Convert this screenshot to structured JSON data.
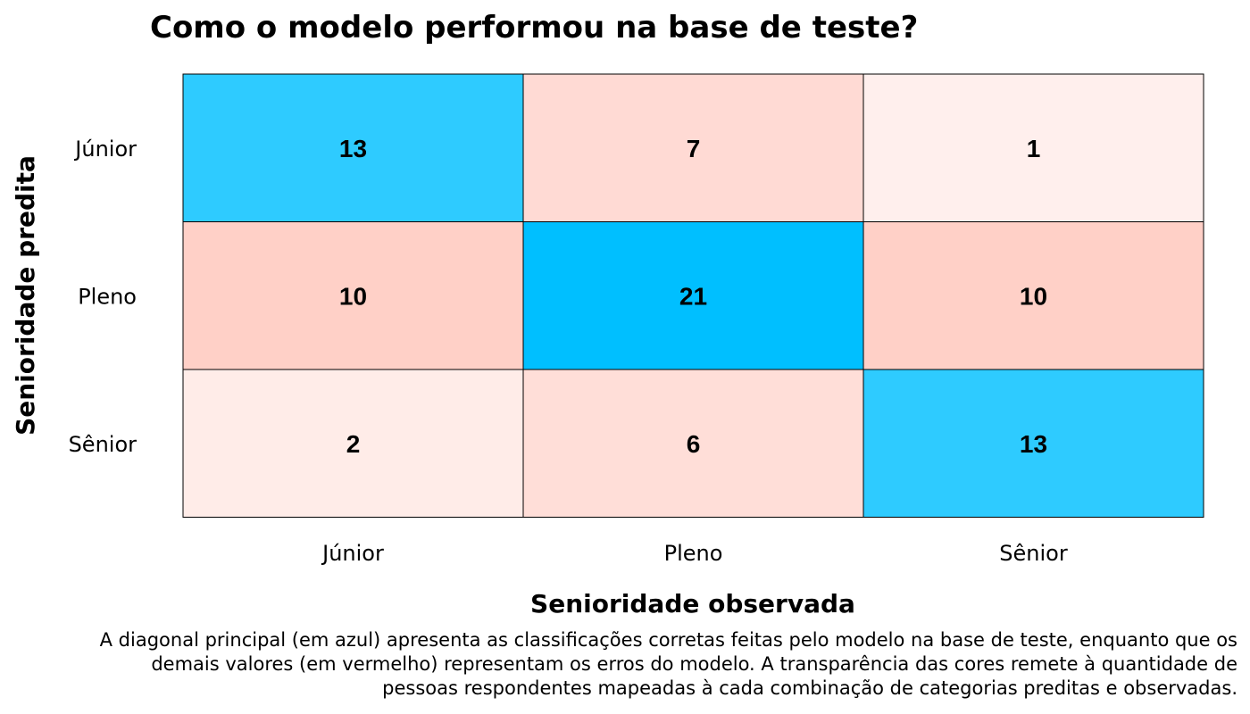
{
  "chart_data": {
    "type": "heatmap",
    "title": "Como o modelo performou na base de teste?",
    "xlabel": "Senioridade observada",
    "ylabel": "Senioridade predita",
    "x_categories": [
      "Júnior",
      "Pleno",
      "Sênior"
    ],
    "y_categories": [
      "Júnior",
      "Pleno",
      "Sênior"
    ],
    "values": [
      [
        13,
        7,
        1
      ],
      [
        10,
        21,
        10
      ],
      [
        2,
        6,
        13
      ]
    ],
    "colors": {
      "correct": "#00BFFF",
      "error": "#FF6347"
    }
  },
  "caption": "A diagonal principal (em azul) apresenta as classificações corretas feitas pelo modelo na base de teste, enquanto que os demais valores (em vermelho) representam os erros do modelo. A transparência das cores remete à quantidade de pessoas respondentes mapeadas à cada combinação de categorias preditas e observadas."
}
